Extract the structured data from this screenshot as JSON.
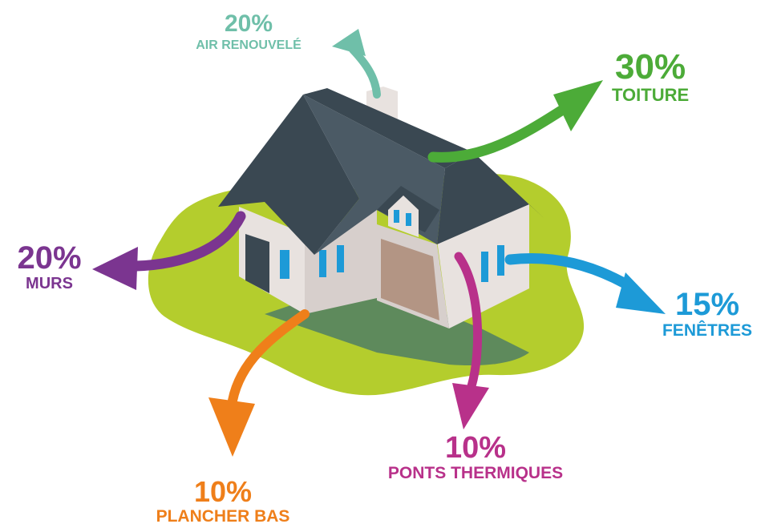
{
  "losses": [
    {
      "key": "air",
      "percent": "20%",
      "label": "AIR RENOUVELÉ",
      "value": 20,
      "color": "#6fbfa9"
    },
    {
      "key": "roof",
      "percent": "30%",
      "label": "TOITURE",
      "value": 30,
      "color": "#4cab38"
    },
    {
      "key": "walls",
      "percent": "20%",
      "label": "MURS",
      "value": 20,
      "color": "#7b3590"
    },
    {
      "key": "windows",
      "percent": "15%",
      "label": "FENÊTRES",
      "value": 15,
      "color": "#1d9ad7"
    },
    {
      "key": "bridges",
      "percent": "10%",
      "label": "PONTS THERMIQUES",
      "value": 10,
      "color": "#b8318a"
    },
    {
      "key": "floor",
      "percent": "10%",
      "label": "PLANCHER BAS",
      "value": 10,
      "color": "#ef7f1a"
    }
  ],
  "colors": {
    "lawn": "#b4cd2d",
    "shadow": "#5e8a5c",
    "roof": "#3a4852",
    "roof_light": "#4b5a65",
    "wall": "#e8e2df",
    "wall_shade": "#d7cfcc",
    "window": "#1d9ad7",
    "door": "#b39584",
    "glass": "#3a4852"
  }
}
